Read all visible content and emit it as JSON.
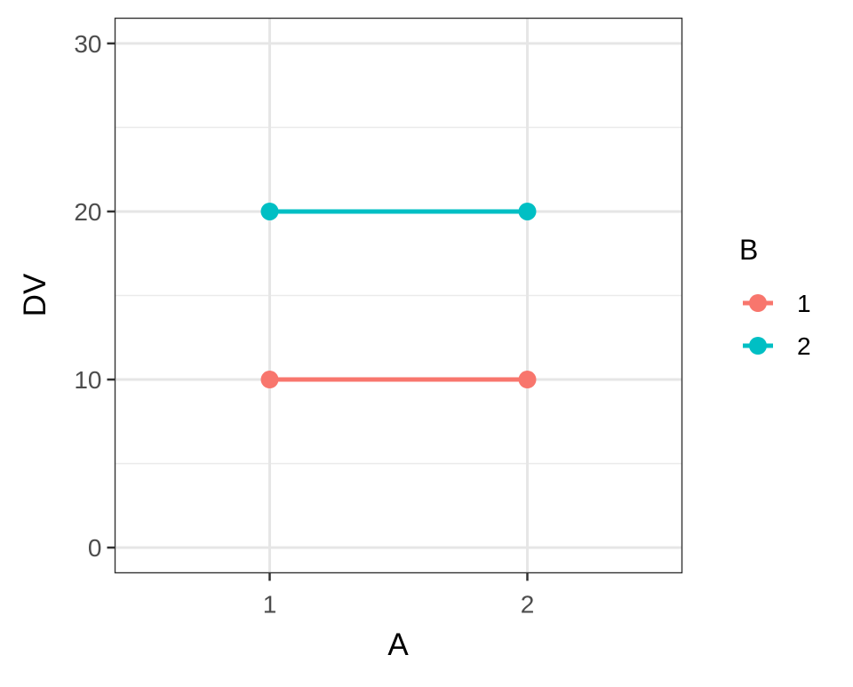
{
  "chart_data": {
    "type": "line",
    "title": "",
    "xlabel": "A",
    "ylabel": "DV",
    "categories": [
      "1",
      "2"
    ],
    "x_ticks": [
      "1",
      "2"
    ],
    "y_ticks": [
      "0",
      "10",
      "20",
      "30"
    ],
    "y_tick_values": [
      0,
      10,
      20,
      30
    ],
    "ylim": [
      -1.5,
      31.5
    ],
    "xlim": [
      0.4,
      2.6
    ],
    "grid": true,
    "legend": {
      "title": "B",
      "placement": "right"
    },
    "series": [
      {
        "name": "1",
        "x": [
          1,
          2
        ],
        "values": [
          10,
          10
        ],
        "color": "#F8766D"
      },
      {
        "name": "2",
        "x": [
          1,
          2
        ],
        "values": [
          20,
          20
        ],
        "color": "#00BFC4"
      }
    ]
  }
}
